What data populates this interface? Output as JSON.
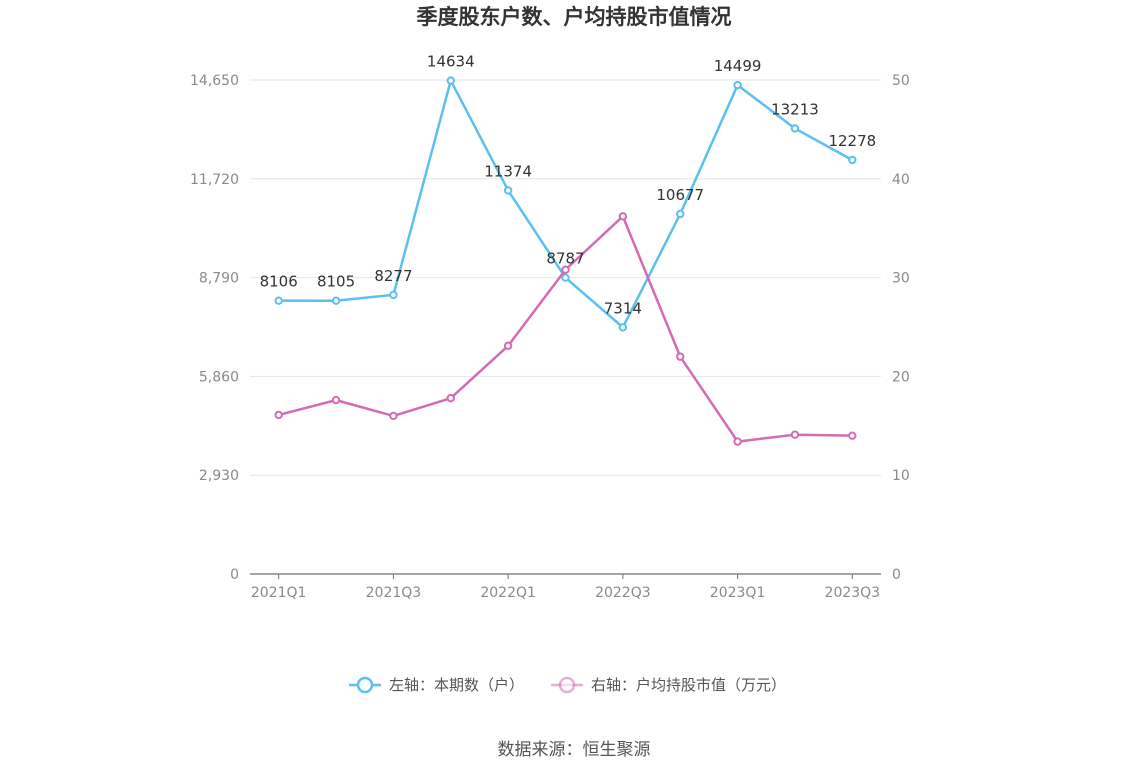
{
  "title": "季度股东户数、户均持股市值情况",
  "source": "数据来源：恒生聚源",
  "chart_data": {
    "type": "line",
    "categories": [
      "2021Q1",
      "2021Q2",
      "2021Q3",
      "2021Q4",
      "2022Q1",
      "2022Q2",
      "2022Q3",
      "2022Q4",
      "2023Q1",
      "2023Q2",
      "2023Q3"
    ],
    "x_tick_labels": [
      "2021Q1",
      "2021Q3",
      "2022Q1",
      "2022Q3",
      "2023Q1",
      "2023Q3"
    ],
    "left_axis": {
      "ticks": [
        "0",
        "2,930",
        "5,860",
        "8,790",
        "11,720",
        "14,650"
      ],
      "ylim": [
        0,
        14650
      ]
    },
    "right_axis": {
      "ticks": [
        "0",
        "10",
        "20",
        "30",
        "40",
        "50"
      ],
      "ylim": [
        0,
        50
      ]
    },
    "grid": true,
    "legend_position": "bottom",
    "series": [
      {
        "name": "左轴：本期数（户）",
        "axis": "left",
        "color": "#5bc0f0",
        "values": [
          8106,
          8105,
          8277,
          14634,
          11374,
          8787,
          7314,
          10677,
          14499,
          13213,
          12278
        ],
        "labels": [
          "8106",
          "8105",
          "8277",
          "14634",
          "11374",
          "8787",
          "7314",
          "10677",
          "14499",
          "13213",
          "12278"
        ]
      },
      {
        "name": "右轴：户均持股市值（万元）",
        "axis": "right",
        "color": "#d46bb3",
        "values": [
          16.1,
          17.6,
          16.0,
          17.8,
          23.1,
          30.8,
          36.2,
          22.0,
          13.4,
          14.1,
          14.0
        ]
      }
    ]
  }
}
